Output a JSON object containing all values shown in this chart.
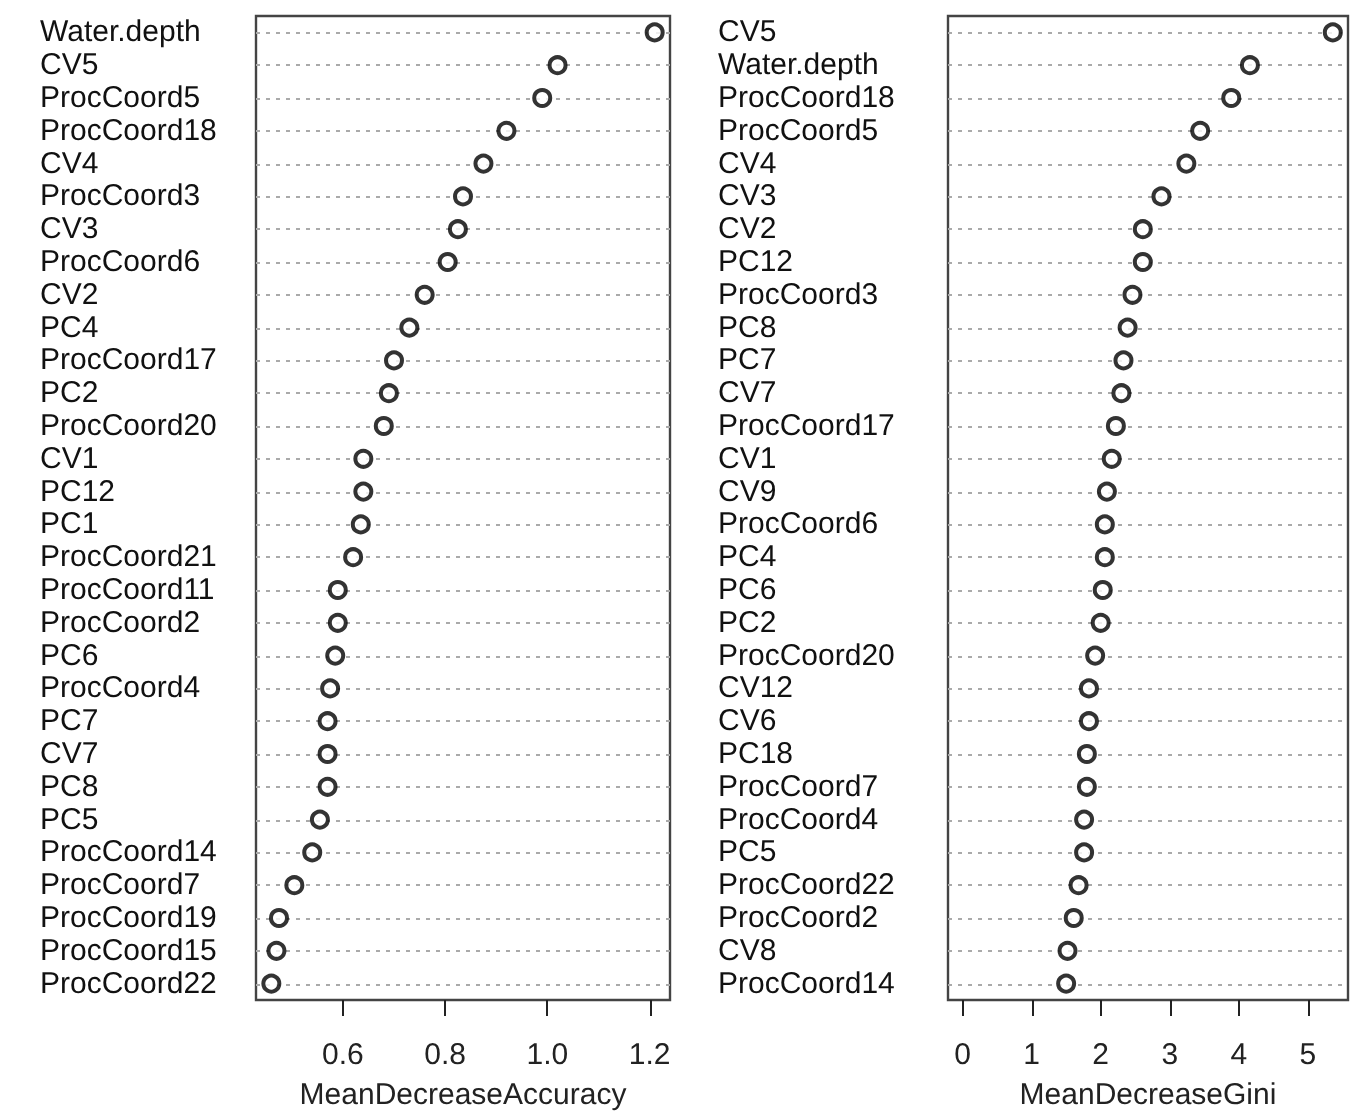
{
  "chart_data": [
    {
      "type": "scatter",
      "orientation": "horizontal",
      "xlabel": "MeanDecreaseAccuracy",
      "color": "#000000",
      "marker": "circle",
      "grid": "y",
      "categories": [
        "Water.depth",
        "CV5",
        "ProcCoord5",
        "ProcCoord18",
        "CV4",
        "ProcCoord3",
        "CV3",
        "ProcCoord6",
        "CV2",
        "PC4",
        "ProcCoord17",
        "PC2",
        "ProcCoord20",
        "CV1",
        "PC12",
        "PC1",
        "ProcCoord21",
        "ProcCoord11",
        "ProcCoord2",
        "PC6",
        "ProcCoord4",
        "PC7",
        "CV7",
        "PC8",
        "PC5",
        "ProcCoord14",
        "ProcCoord7",
        "ProcCoord19",
        "ProcCoord15",
        "ProcCoord22"
      ],
      "values": [
        1.21,
        1.02,
        0.99,
        0.92,
        0.875,
        0.835,
        0.825,
        0.805,
        0.76,
        0.73,
        0.7,
        0.69,
        0.68,
        0.64,
        0.64,
        0.635,
        0.62,
        0.59,
        0.59,
        0.585,
        0.575,
        0.57,
        0.57,
        0.57,
        0.555,
        0.54,
        0.505,
        0.475,
        0.47,
        0.46
      ],
      "xlim": [
        0.43,
        1.24
      ],
      "xticks": [
        0.6,
        0.8,
        {
          "value": 1,
          "label": "1.0"
        },
        1.2
      ]
    },
    {
      "type": "scatter",
      "orientation": "horizontal",
      "xlabel": "MeanDecreaseGini",
      "color": "#000000",
      "marker": "circle",
      "grid": "y",
      "categories": [
        "CV5",
        "Water.depth",
        "ProcCoord18",
        "ProcCoord5",
        "CV4",
        "CV3",
        "CV2",
        "PC12",
        "ProcCoord3",
        "PC8",
        "PC7",
        "CV7",
        "ProcCoord17",
        "CV1",
        "CV9",
        "ProcCoord6",
        "PC4",
        "PC6",
        "PC2",
        "ProcCoord20",
        "CV12",
        "CV6",
        "PC18",
        "ProcCoord7",
        "ProcCoord4",
        "PC5",
        "ProcCoord22",
        "ProcCoord2",
        "CV8",
        "ProcCoord14"
      ],
      "values": [
        5.36,
        4.16,
        3.89,
        3.44,
        3.24,
        2.88,
        2.61,
        2.61,
        2.46,
        2.39,
        2.33,
        2.3,
        2.22,
        2.16,
        2.09,
        2.06,
        2.06,
        2.03,
        2.0,
        1.92,
        1.83,
        1.83,
        1.8,
        1.8,
        1.76,
        1.76,
        1.68,
        1.61,
        1.52,
        1.5
      ],
      "xlim": [
        -0.21,
        5.58
      ],
      "xticks": [
        0,
        1,
        2,
        3,
        4,
        5
      ]
    }
  ]
}
